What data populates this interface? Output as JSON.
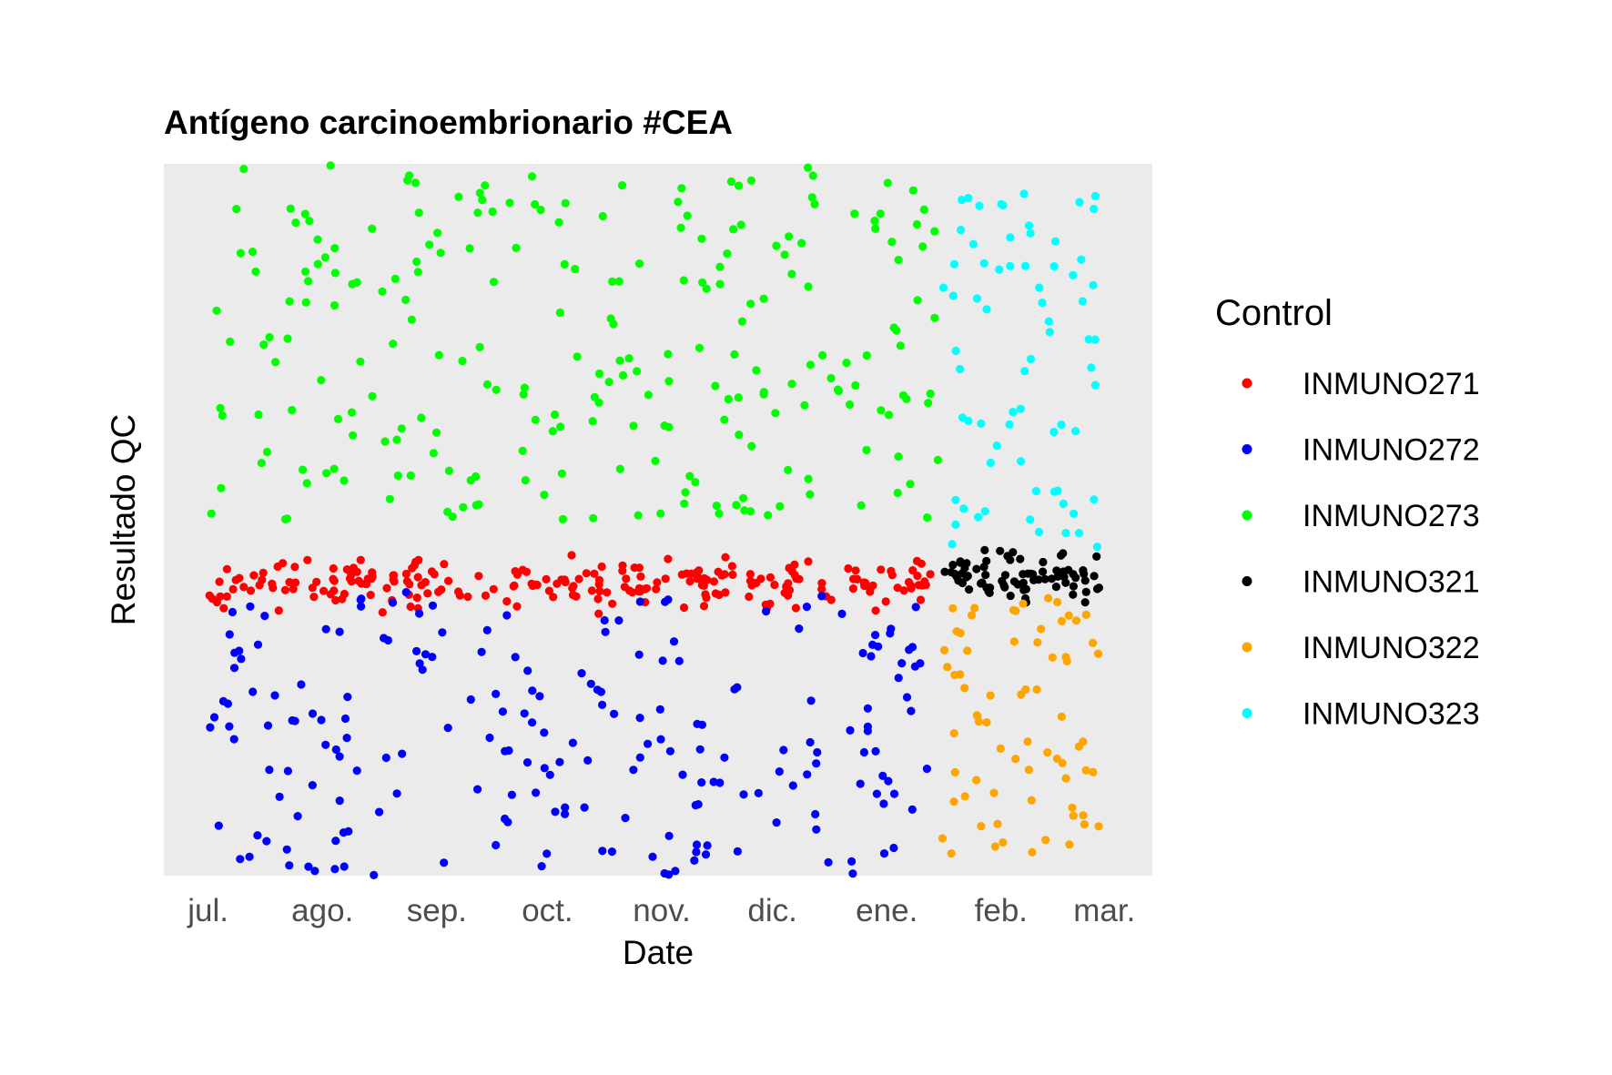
{
  "chart_data": {
    "type": "scatter",
    "title": "Antígeno carcinoembrionario #CEA",
    "xlabel": "Date",
    "ylabel": "Resultado QC",
    "x_ticks": [
      "jul.",
      "ago.",
      "sep.",
      "oct.",
      "nov.",
      "dic.",
      "ene.",
      "feb.",
      "mar."
    ],
    "x_tick_days": [
      0,
      31,
      62,
      92,
      123,
      153,
      184,
      215,
      243
    ],
    "xlim": [
      -12,
      256
    ],
    "ylim": [
      0,
      100
    ],
    "y_ticks_shown": false,
    "legend": {
      "title": "Control",
      "position": "right"
    },
    "series": [
      {
        "name": "INMUNO271",
        "color": "#FF0000",
        "x_range": [
          0,
          198
        ],
        "y_center": 41,
        "y_spread": 5,
        "count": 230
      },
      {
        "name": "INMUNO272",
        "color": "#0000FF",
        "x_range": [
          0,
          198
        ],
        "y_center": 20,
        "y_spread": 20,
        "count": 210
      },
      {
        "name": "INMUNO273",
        "color": "#00FF00",
        "x_range": [
          0,
          198
        ],
        "y_center": 75,
        "y_spread": 25,
        "count": 240
      },
      {
        "name": "INMUNO321",
        "color": "#000000",
        "x_range": [
          199,
          242
        ],
        "y_center": 42,
        "y_spread": 5,
        "count": 75
      },
      {
        "name": "INMUNO322",
        "color": "#FFA500",
        "x_range": [
          199,
          242
        ],
        "y_center": 21,
        "y_spread": 18,
        "count": 70
      },
      {
        "name": "INMUNO323",
        "color": "#00FFFF",
        "x_range": [
          199,
          242
        ],
        "y_center": 71,
        "y_spread": 25,
        "count": 70
      }
    ]
  }
}
